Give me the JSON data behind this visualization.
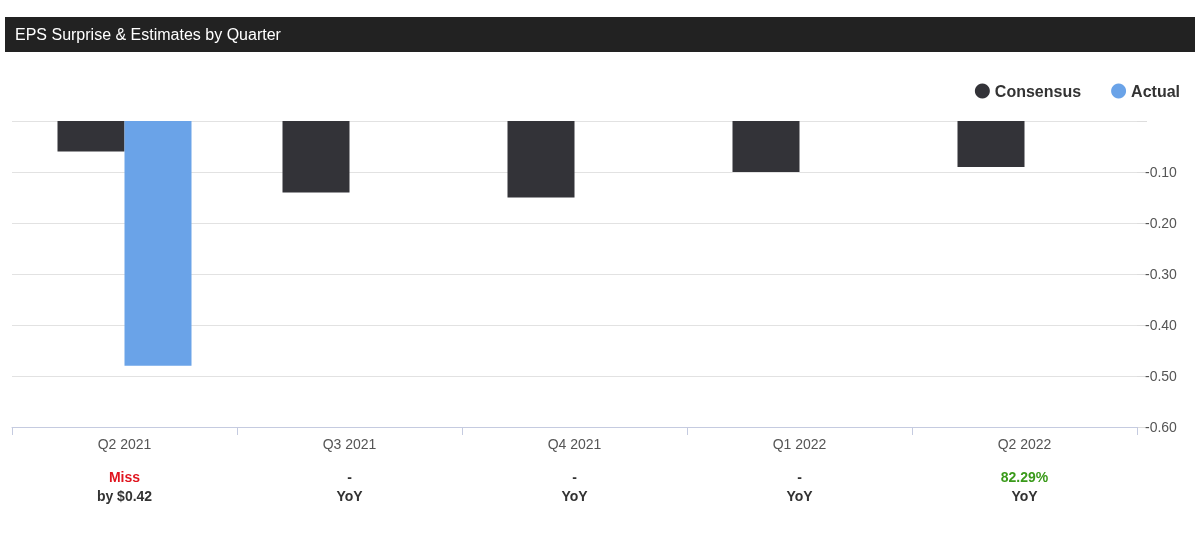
{
  "chart_data": {
    "type": "bar",
    "title": "EPS Surprise & Estimates by Quarter",
    "categories": [
      "Q2 2021",
      "Q3 2021",
      "Q4 2021",
      "Q1 2022",
      "Q2 2022"
    ],
    "series": [
      {
        "name": "Consensus",
        "color": "#333338",
        "values": [
          -0.06,
          -0.14,
          -0.15,
          -0.1,
          -0.09
        ]
      },
      {
        "name": "Actual",
        "color": "#6aa3e8",
        "values": [
          -0.48,
          null,
          null,
          null,
          null
        ]
      }
    ],
    "ylim": [
      -0.6,
      0
    ],
    "yticks": [
      {
        "value": 0,
        "label": null
      },
      {
        "value": -0.1,
        "label": "-0.10"
      },
      {
        "value": -0.2,
        "label": "-0.20"
      },
      {
        "value": -0.3,
        "label": "-0.30"
      },
      {
        "value": -0.4,
        "label": "-0.40"
      },
      {
        "value": -0.5,
        "label": "-0.50"
      },
      {
        "value": -0.6,
        "label": "-0.60"
      }
    ],
    "grid": "y",
    "legend": "top right",
    "annotations": [
      "Miss",
      "by $0.42",
      "-",
      "YoY",
      "-",
      "YoY",
      "-",
      "YoY",
      "82.29%",
      "YoY"
    ]
  }
}
